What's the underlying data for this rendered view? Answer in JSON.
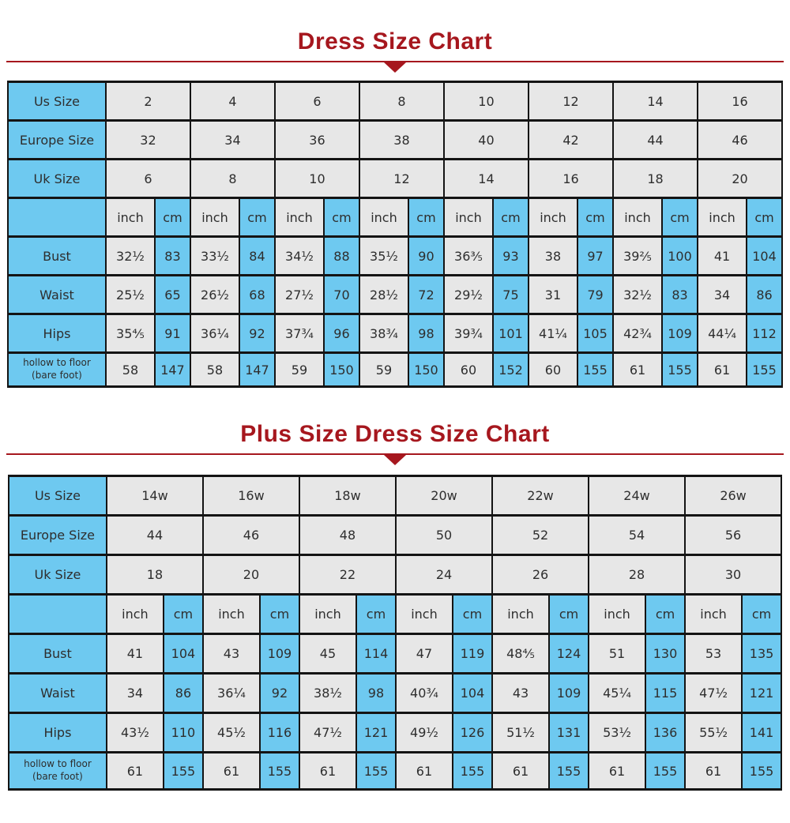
{
  "colors": {
    "accent_red": "#a6171e",
    "header_blue": "#6ec9f0",
    "cell_gray": "#e7e7e7",
    "border_black": "#141414"
  },
  "sections": [
    {
      "title": "Dress Size Chart",
      "table": {
        "units": [
          "inch",
          "cm"
        ],
        "size_rows": [
          {
            "label": "Us Size",
            "values": [
              "2",
              "4",
              "6",
              "8",
              "10",
              "12",
              "14",
              "16"
            ]
          },
          {
            "label": "Europe Size",
            "values": [
              "32",
              "34",
              "36",
              "38",
              "40",
              "42",
              "44",
              "46"
            ]
          },
          {
            "label": "Uk Size",
            "values": [
              "6",
              "8",
              "10",
              "12",
              "14",
              "16",
              "18",
              "20"
            ]
          }
        ],
        "measure_rows": [
          {
            "label": "Bust",
            "pairs": [
              [
                "32½",
                "83"
              ],
              [
                "33½",
                "84"
              ],
              [
                "34½",
                "88"
              ],
              [
                "35½",
                "90"
              ],
              [
                "36⅗",
                "93"
              ],
              [
                "38",
                "97"
              ],
              [
                "39⅖",
                "100"
              ],
              [
                "41",
                "104"
              ]
            ]
          },
          {
            "label": "Waist",
            "pairs": [
              [
                "25½",
                "65"
              ],
              [
                "26½",
                "68"
              ],
              [
                "27½",
                "70"
              ],
              [
                "28½",
                "72"
              ],
              [
                "29½",
                "75"
              ],
              [
                "31",
                "79"
              ],
              [
                "32½",
                "83"
              ],
              [
                "34",
                "86"
              ]
            ]
          },
          {
            "label": "Hips",
            "pairs": [
              [
                "35⅘",
                "91"
              ],
              [
                "36¼",
                "92"
              ],
              [
                "37¾",
                "96"
              ],
              [
                "38¾",
                "98"
              ],
              [
                "39¾",
                "101"
              ],
              [
                "41¼",
                "105"
              ],
              [
                "42¾",
                "109"
              ],
              [
                "44¼",
                "112"
              ]
            ]
          },
          {
            "label": "hollow to floor\n(bare foot)",
            "pairs": [
              [
                "58",
                "147"
              ],
              [
                "58",
                "147"
              ],
              [
                "59",
                "150"
              ],
              [
                "59",
                "150"
              ],
              [
                "60",
                "152"
              ],
              [
                "60",
                "155"
              ],
              [
                "61",
                "155"
              ],
              [
                "61",
                "155"
              ]
            ]
          }
        ]
      }
    },
    {
      "title": "Plus Size Dress Size Chart",
      "table": {
        "units": [
          "inch",
          "cm"
        ],
        "size_rows": [
          {
            "label": "Us Size",
            "values": [
              "14w",
              "16w",
              "18w",
              "20w",
              "22w",
              "24w",
              "26w"
            ]
          },
          {
            "label": "Europe Size",
            "values": [
              "44",
              "46",
              "48",
              "50",
              "52",
              "54",
              "56"
            ]
          },
          {
            "label": "Uk Size",
            "values": [
              "18",
              "20",
              "22",
              "24",
              "26",
              "28",
              "30"
            ]
          }
        ],
        "measure_rows": [
          {
            "label": "Bust",
            "pairs": [
              [
                "41",
                "104"
              ],
              [
                "43",
                "109"
              ],
              [
                "45",
                "114"
              ],
              [
                "47",
                "119"
              ],
              [
                "48⅘",
                "124"
              ],
              [
                "51",
                "130"
              ],
              [
                "53",
                "135"
              ]
            ]
          },
          {
            "label": "Waist",
            "pairs": [
              [
                "34",
                "86"
              ],
              [
                "36¼",
                "92"
              ],
              [
                "38½",
                "98"
              ],
              [
                "40¾",
                "104"
              ],
              [
                "43",
                "109"
              ],
              [
                "45¼",
                "115"
              ],
              [
                "47½",
                "121"
              ]
            ]
          },
          {
            "label": "Hips",
            "pairs": [
              [
                "43½",
                "110"
              ],
              [
                "45½",
                "116"
              ],
              [
                "47½",
                "121"
              ],
              [
                "49½",
                "126"
              ],
              [
                "51½",
                "131"
              ],
              [
                "53½",
                "136"
              ],
              [
                "55½",
                "141"
              ]
            ]
          },
          {
            "label": "hollow to floor\n(bare foot)",
            "pairs": [
              [
                "61",
                "155"
              ],
              [
                "61",
                "155"
              ],
              [
                "61",
                "155"
              ],
              [
                "61",
                "155"
              ],
              [
                "61",
                "155"
              ],
              [
                "61",
                "155"
              ],
              [
                "61",
                "155"
              ]
            ]
          }
        ]
      }
    }
  ]
}
